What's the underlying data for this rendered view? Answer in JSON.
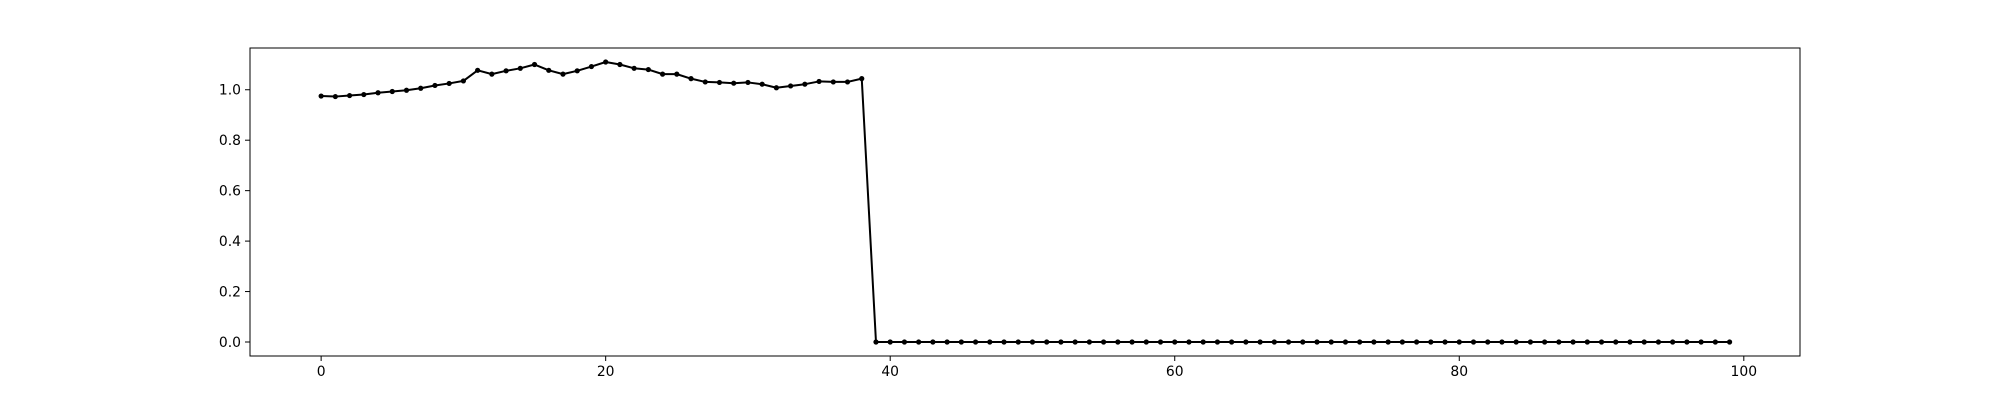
{
  "chart_data": {
    "type": "line",
    "title": "",
    "xlabel": "",
    "ylabel": "",
    "xlim": [
      -5,
      103.95
    ],
    "ylim": [
      -0.0555,
      1.1655
    ],
    "xticks": [
      0,
      20,
      40,
      60,
      80,
      100
    ],
    "xtick_labels": [
      "0",
      "20",
      "40",
      "60",
      "80",
      "100"
    ],
    "yticks": [
      0.0,
      0.2,
      0.4,
      0.6,
      0.8,
      1.0
    ],
    "ytick_labels": [
      "0.0",
      "0.2",
      "0.4",
      "0.6",
      "0.8",
      "1.0"
    ],
    "grid": false,
    "legend": "none",
    "series": [
      {
        "color": "#000000",
        "marker": "circle",
        "x": [
          0,
          1,
          2,
          3,
          4,
          5,
          6,
          7,
          8,
          9,
          10,
          11,
          12,
          13,
          14,
          15,
          16,
          17,
          18,
          19,
          20,
          21,
          22,
          23,
          24,
          25,
          26,
          27,
          28,
          29,
          30,
          31,
          32,
          33,
          34,
          35,
          36,
          37,
          38,
          39,
          40,
          41,
          42,
          43,
          44,
          45,
          46,
          47,
          48,
          49,
          50,
          51,
          52,
          53,
          54,
          55,
          56,
          57,
          58,
          59,
          60,
          61,
          62,
          63,
          64,
          65,
          66,
          67,
          68,
          69,
          70,
          71,
          72,
          73,
          74,
          75,
          76,
          77,
          78,
          79,
          80,
          81,
          82,
          83,
          84,
          85,
          86,
          87,
          88,
          89,
          90,
          91,
          92,
          93,
          94,
          95,
          96,
          97,
          98,
          99
        ],
        "y": [
          0.975,
          0.973,
          0.977,
          0.981,
          0.988,
          0.993,
          0.998,
          1.006,
          1.017,
          1.025,
          1.035,
          1.077,
          1.062,
          1.075,
          1.085,
          1.1,
          1.077,
          1.062,
          1.075,
          1.092,
          1.11,
          1.1,
          1.085,
          1.08,
          1.062,
          1.062,
          1.044,
          1.031,
          1.029,
          1.026,
          1.029,
          1.022,
          1.008,
          1.015,
          1.022,
          1.033,
          1.031,
          1.031,
          1.044,
          0.0,
          0.0,
          0.0,
          0.0,
          0.0,
          0.0,
          0.0,
          0.0,
          0.0,
          0.0,
          0.0,
          0.0,
          0.0,
          0.0,
          0.0,
          0.0,
          0.0,
          0.0,
          0.0,
          0.0,
          0.0,
          0.0,
          0.0,
          0.0,
          0.0,
          0.0,
          0.0,
          0.0,
          0.0,
          0.0,
          0.0,
          0.0,
          0.0,
          0.0,
          0.0,
          0.0,
          0.0,
          0.0,
          0.0,
          0.0,
          0.0,
          0.0,
          0.0,
          0.0,
          0.0,
          0.0,
          0.0,
          0.0,
          0.0,
          0.0,
          0.0,
          0.0,
          0.0,
          0.0,
          0.0,
          0.0,
          0.0,
          0.0,
          0.0,
          0.0,
          0.0
        ]
      }
    ]
  }
}
